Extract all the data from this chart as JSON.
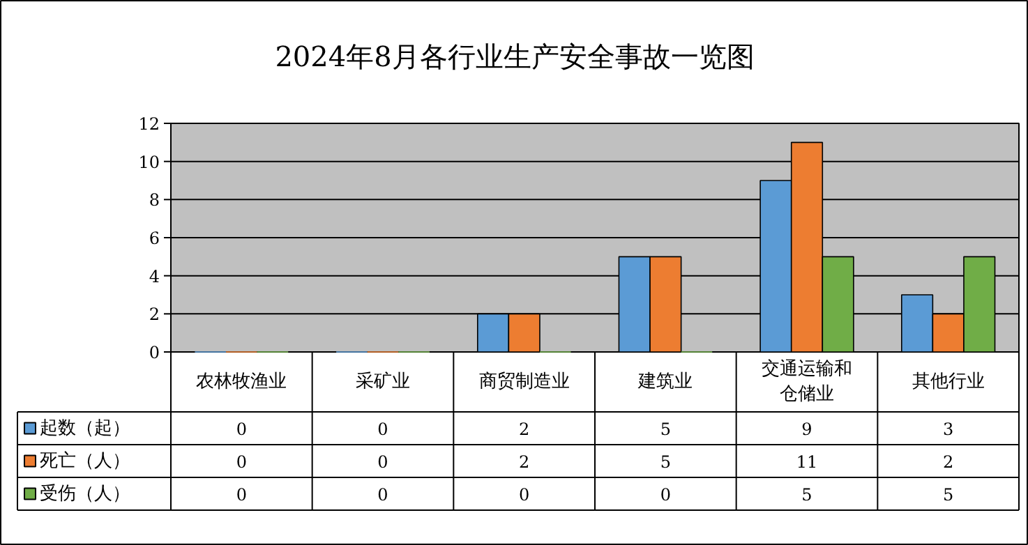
{
  "chart_data": {
    "type": "bar",
    "title": "2024年8月各行业生产安全事故一览图",
    "categories": [
      "农林牧渔业",
      "采矿业",
      "商贸制造业",
      "建筑业",
      "交通运输和仓储业",
      "其他行业"
    ],
    "series": [
      {
        "name": "起数（起）",
        "color": "#5b9bd5",
        "values": [
          0,
          0,
          2,
          5,
          9,
          3
        ]
      },
      {
        "name": "死亡（人）",
        "color": "#ed7d31",
        "values": [
          0,
          0,
          2,
          5,
          11,
          2
        ]
      },
      {
        "name": "受伤（人）",
        "color": "#70ad47",
        "values": [
          0,
          0,
          0,
          0,
          5,
          5
        ]
      }
    ],
    "ylim": [
      0,
      12
    ],
    "yticks": [
      0,
      2,
      4,
      6,
      8,
      10,
      12
    ],
    "grid": "y",
    "legend": "bottom left",
    "data_labels": true
  }
}
